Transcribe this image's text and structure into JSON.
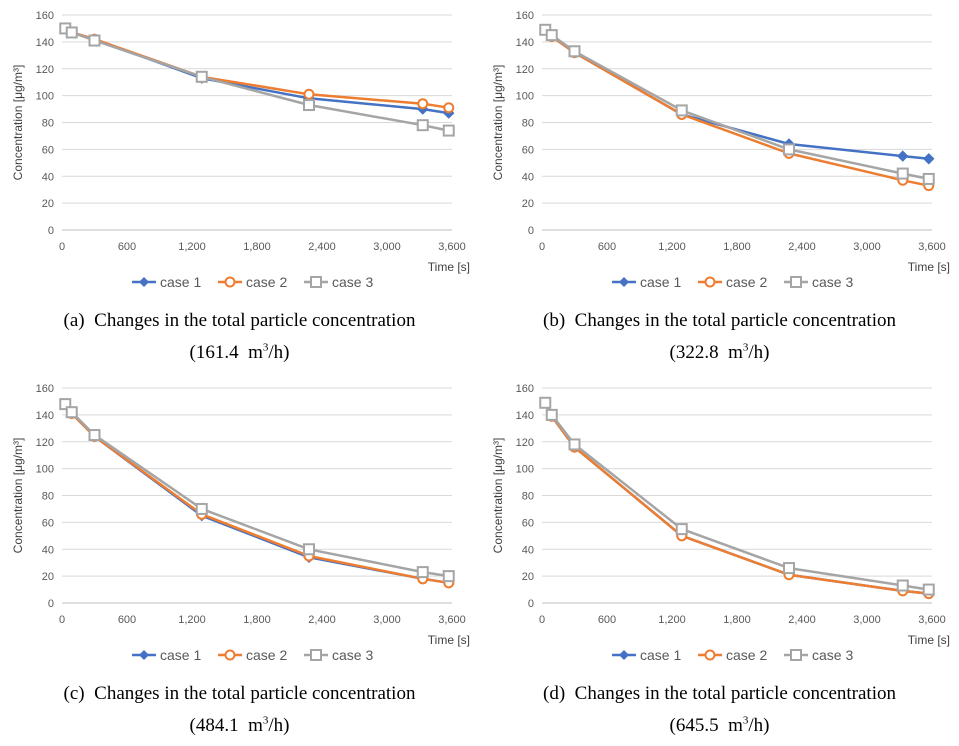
{
  "chart_data": [
    {
      "type": "line",
      "panel_label": "(a)",
      "title": "Changes in the total particle concentration",
      "flow_value": "161.4",
      "flow_unit": "m",
      "flow_unit_exp": "3",
      "flow_unit_tail": "/h",
      "xlabel": "Time [s]",
      "ylabel": "Concentration [μg/m³]",
      "xticks": [
        "0",
        "600",
        "1,200",
        "1,800",
        "2,400",
        "3,000",
        "3,600"
      ],
      "yticks": [
        "0",
        "20",
        "40",
        "60",
        "80",
        "100",
        "120",
        "140",
        "160"
      ],
      "xlim": [
        0,
        3600
      ],
      "ylim": [
        0,
        160
      ],
      "x": [
        30,
        90,
        300,
        1290,
        2280,
        3330,
        3570
      ],
      "series": [
        {
          "name": "case 1",
          "color": "#4472C4",
          "marker": "diamond",
          "values": [
            150,
            147,
            142,
            113,
            98,
            90,
            87
          ]
        },
        {
          "name": "case 2",
          "color": "#ED7D31",
          "marker": "circle",
          "values": [
            150,
            147,
            142,
            114,
            101,
            94,
            91
          ]
        },
        {
          "name": "case 3",
          "color": "#A5A5A5",
          "marker": "square",
          "values": [
            150,
            147,
            141,
            114,
            93,
            78,
            74
          ]
        }
      ]
    },
    {
      "type": "line",
      "panel_label": "(b)",
      "title": "Changes in the total particle concentration",
      "flow_value": "322.8",
      "flow_unit": "m",
      "flow_unit_exp": "3",
      "flow_unit_tail": "/h",
      "xlabel": "Time [s]",
      "ylabel": "Concentration [μg/m³]",
      "xticks": [
        "0",
        "600",
        "1,200",
        "1,800",
        "2,400",
        "3,000",
        "3,600"
      ],
      "yticks": [
        "0",
        "20",
        "40",
        "60",
        "80",
        "100",
        "120",
        "140",
        "160"
      ],
      "xlim": [
        0,
        3600
      ],
      "ylim": [
        0,
        160
      ],
      "x": [
        30,
        90,
        300,
        1290,
        2280,
        3330,
        3570
      ],
      "series": [
        {
          "name": "case 1",
          "color": "#4472C4",
          "marker": "diamond",
          "values": [
            149,
            144,
            132,
            86,
            64,
            55,
            53
          ]
        },
        {
          "name": "case 2",
          "color": "#ED7D31",
          "marker": "circle",
          "values": [
            149,
            144,
            132,
            86,
            57,
            37,
            33
          ]
        },
        {
          "name": "case 3",
          "color": "#A5A5A5",
          "marker": "square",
          "values": [
            149,
            145,
            133,
            89,
            60,
            42,
            38
          ]
        }
      ]
    },
    {
      "type": "line",
      "panel_label": "(c)",
      "title": "Changes in the total particle concentration",
      "flow_value": "484.1",
      "flow_unit": "m",
      "flow_unit_exp": "3",
      "flow_unit_tail": "/h",
      "xlabel": "Time [s]",
      "ylabel": "Concentration [μg/m³]",
      "xticks": [
        "0",
        "600",
        "1,200",
        "1,800",
        "2,400",
        "3,000",
        "3,600"
      ],
      "yticks": [
        "0",
        "20",
        "40",
        "60",
        "80",
        "100",
        "120",
        "140",
        "160"
      ],
      "xlim": [
        0,
        3600
      ],
      "ylim": [
        0,
        160
      ],
      "x": [
        30,
        90,
        300,
        1290,
        2280,
        3330,
        3570
      ],
      "series": [
        {
          "name": "case 1",
          "color": "#4472C4",
          "marker": "diamond",
          "values": [
            148,
            141,
            124,
            65,
            34,
            18,
            15
          ]
        },
        {
          "name": "case 2",
          "color": "#ED7D31",
          "marker": "circle",
          "values": [
            148,
            141,
            124,
            66,
            35,
            18,
            15
          ]
        },
        {
          "name": "case 3",
          "color": "#A5A5A5",
          "marker": "square",
          "values": [
            148,
            142,
            125,
            70,
            40,
            23,
            20
          ]
        }
      ]
    },
    {
      "type": "line",
      "panel_label": "(d)",
      "title": "Changes in the total particle concentration",
      "flow_value": "645.5",
      "flow_unit": "m",
      "flow_unit_exp": "3",
      "flow_unit_tail": "/h",
      "xlabel": "Time [s]",
      "ylabel": "Concentration [μg/m³]",
      "xticks": [
        "0",
        "600",
        "1,200",
        "1,800",
        "2,400",
        "3,000",
        "3,600"
      ],
      "yticks": [
        "0",
        "20",
        "40",
        "60",
        "80",
        "100",
        "120",
        "140",
        "160"
      ],
      "xlim": [
        0,
        3600
      ],
      "ylim": [
        0,
        160
      ],
      "x": [
        30,
        90,
        300,
        1290,
        2280,
        3330,
        3570
      ],
      "series": [
        {
          "name": "case 1",
          "color": "#4472C4",
          "marker": "diamond",
          "values": [
            149,
            139,
            116,
            50,
            21,
            9,
            7
          ]
        },
        {
          "name": "case 2",
          "color": "#ED7D31",
          "marker": "circle",
          "values": [
            149,
            139,
            116,
            50,
            21,
            9,
            7
          ]
        },
        {
          "name": "case 3",
          "color": "#A5A5A5",
          "marker": "square",
          "values": [
            149,
            140,
            118,
            55,
            26,
            13,
            10
          ]
        }
      ]
    }
  ]
}
